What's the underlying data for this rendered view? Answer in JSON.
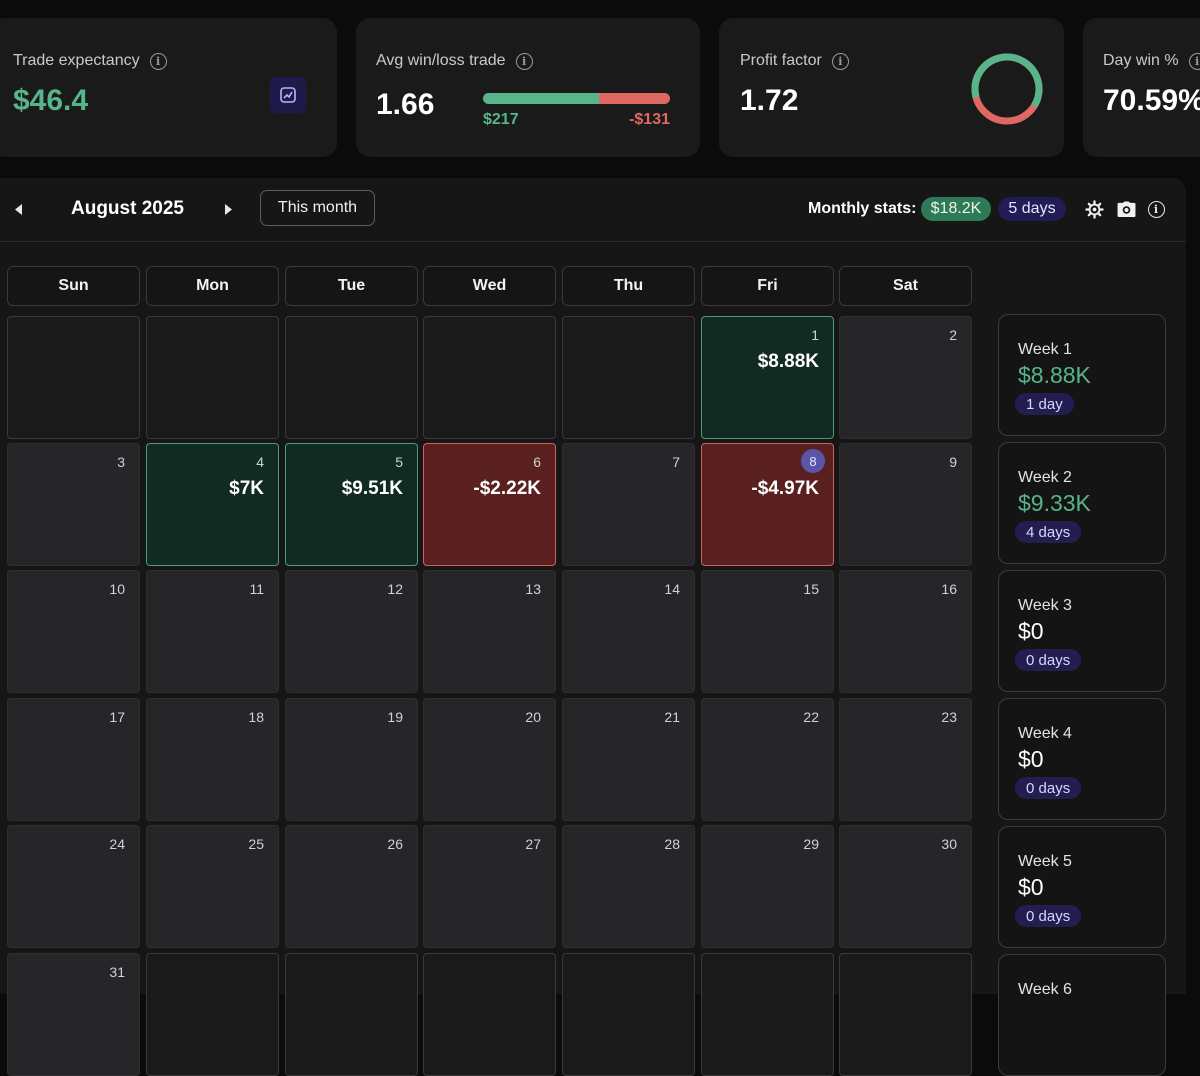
{
  "stats_cards": {
    "trade_expectancy": {
      "title": "Trade expectancy",
      "value": "$46.4"
    },
    "avg_win_loss": {
      "title": "Avg win/loss trade",
      "value": "1.66",
      "avg_win": "$217",
      "avg_loss": "-$131",
      "win_ratio": 0.62
    },
    "profit_factor": {
      "title": "Profit factor",
      "value": "1.72",
      "gross_profit_share": 0.63
    },
    "day_win": {
      "title": "Day win %",
      "value": "70.59%"
    }
  },
  "calendar": {
    "month_label": "August 2025",
    "this_month_button": "This month",
    "monthly_stats_label": "Monthly stats:",
    "monthly_pnl": "$18.2K",
    "monthly_days": "5 days",
    "weekdays": [
      "Sun",
      "Mon",
      "Tue",
      "Wed",
      "Thu",
      "Fri",
      "Sat"
    ],
    "rows": [
      [
        {
          "day": ""
        },
        {
          "day": ""
        },
        {
          "day": ""
        },
        {
          "day": ""
        },
        {
          "day": ""
        },
        {
          "day": "1",
          "pnl": "$8.88K",
          "result": "win"
        },
        {
          "day": "2"
        }
      ],
      [
        {
          "day": "3"
        },
        {
          "day": "4",
          "pnl": "$7K",
          "result": "win"
        },
        {
          "day": "5",
          "pnl": "$9.51K",
          "result": "win"
        },
        {
          "day": "6",
          "pnl": "-$2.22K",
          "result": "loss"
        },
        {
          "day": "7"
        },
        {
          "day": "8",
          "pnl": "-$4.97K",
          "result": "loss",
          "badge": true
        },
        {
          "day": "9"
        }
      ],
      [
        {
          "day": "10"
        },
        {
          "day": "11"
        },
        {
          "day": "12"
        },
        {
          "day": "13"
        },
        {
          "day": "14"
        },
        {
          "day": "15"
        },
        {
          "day": "16"
        }
      ],
      [
        {
          "day": "17"
        },
        {
          "day": "18"
        },
        {
          "day": "19"
        },
        {
          "day": "20"
        },
        {
          "day": "21"
        },
        {
          "day": "22"
        },
        {
          "day": "23"
        }
      ],
      [
        {
          "day": "24"
        },
        {
          "day": "25"
        },
        {
          "day": "26"
        },
        {
          "day": "27"
        },
        {
          "day": "28"
        },
        {
          "day": "29"
        },
        {
          "day": "30"
        }
      ],
      [
        {
          "day": "31"
        },
        {
          "day": ""
        },
        {
          "day": ""
        },
        {
          "day": ""
        },
        {
          "day": ""
        },
        {
          "day": ""
        },
        {
          "day": ""
        }
      ]
    ],
    "weeks": [
      {
        "label": "Week 1",
        "value": "$8.88K",
        "days": "1 day",
        "positive": true
      },
      {
        "label": "Week 2",
        "value": "$9.33K",
        "days": "4 days",
        "positive": true
      },
      {
        "label": "Week 3",
        "value": "$0",
        "days": "0 days",
        "positive": false
      },
      {
        "label": "Week 4",
        "value": "$0",
        "days": "0 days",
        "positive": false
      },
      {
        "label": "Week 5",
        "value": "$0",
        "days": "0 days",
        "positive": false
      },
      {
        "label": "Week 6",
        "value": "",
        "days": "",
        "positive": false
      }
    ]
  },
  "colors": {
    "positive": "#58b58a",
    "negative": "#e06864",
    "accent_badge": "#211c55"
  }
}
